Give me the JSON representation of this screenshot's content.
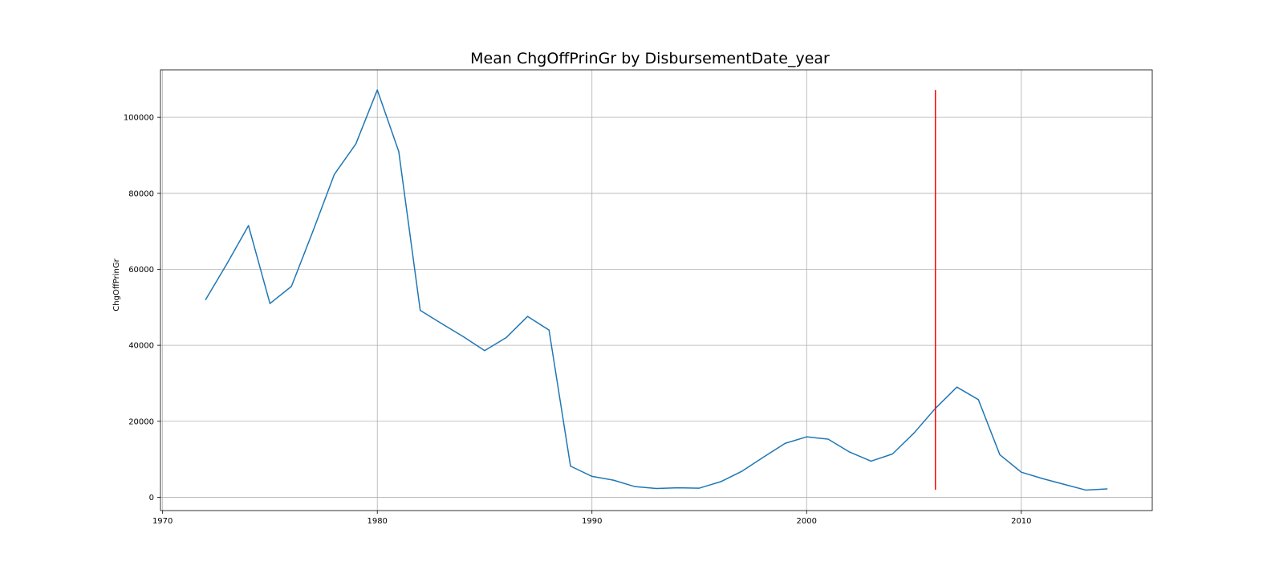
{
  "chart_data": {
    "type": "line",
    "title": "Mean ChgOffPrinGr by DisbursementDate_year",
    "xlabel": "",
    "ylabel": "ChgOffPrinGr",
    "xlim": [
      1969.9,
      2016.1
    ],
    "ylim": [
      -3500,
      112500
    ],
    "grid": true,
    "x_ticks": [
      1970,
      1980,
      1990,
      2000,
      2010
    ],
    "y_ticks": [
      0,
      20000,
      40000,
      60000,
      80000,
      100000
    ],
    "colors": {
      "line": "#1f77b4",
      "marker_line": "#ff0000"
    },
    "series": [
      {
        "x": [
          1972,
          1973,
          1974,
          1975,
          1976,
          1977,
          1978,
          1979,
          1980,
          1981,
          1982,
          1983,
          1984,
          1985,
          1986,
          1987,
          1988,
          1989,
          1990,
          1991,
          1992,
          1993,
          1994,
          1995,
          1996,
          1997,
          1998,
          1999,
          2000,
          2001,
          2002,
          2003,
          2004,
          2005,
          2006,
          2007,
          2008,
          2009,
          2010,
          2011,
          2012,
          2013,
          2014
        ],
        "values": [
          52000,
          61500,
          71500,
          51000,
          55500,
          70000,
          85000,
          93000,
          107200,
          91000,
          49200,
          45700,
          42300,
          38600,
          42000,
          47600,
          44000,
          8200,
          5500,
          4500,
          2800,
          2300,
          2500,
          2400,
          4100,
          6900,
          10600,
          14200,
          15900,
          15300,
          11900,
          9500,
          11400,
          16900,
          23400,
          29000,
          25700,
          11200,
          6600,
          4900,
          3400,
          1900,
          2200
        ]
      }
    ],
    "vertical_line": {
      "x": 2006,
      "y_range": [
        2000,
        107200
      ]
    }
  }
}
